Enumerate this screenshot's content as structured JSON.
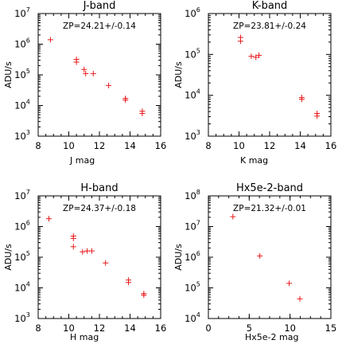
{
  "chart_data": [
    {
      "type": "scatter",
      "title": "J-band",
      "annotation": "ZP=24.21+/-0.14",
      "xlabel": "J mag",
      "ylabel": "ADU/s",
      "xlim": [
        8,
        16
      ],
      "ylim_log10": [
        3,
        7
      ],
      "xticks": [
        "8",
        "10",
        "12",
        "14",
        "16"
      ],
      "yticks": [
        {
          "base": "10",
          "exp": "3"
        },
        {
          "base": "10",
          "exp": "4"
        },
        {
          "base": "10",
          "exp": "5"
        },
        {
          "base": "10",
          "exp": "6"
        },
        {
          "base": "10",
          "exp": "7"
        }
      ],
      "y_scale": "log",
      "marker_color": "#e8191c",
      "points": [
        {
          "x": 8.8,
          "y": 1400000.0
        },
        {
          "x": 10.5,
          "y": 320000.0
        },
        {
          "x": 10.5,
          "y": 260000.0
        },
        {
          "x": 11.0,
          "y": 150000.0
        },
        {
          "x": 11.1,
          "y": 110000.0
        },
        {
          "x": 11.6,
          "y": 110000.0
        },
        {
          "x": 12.6,
          "y": 45000.0
        },
        {
          "x": 13.7,
          "y": 17000.0
        },
        {
          "x": 13.7,
          "y": 15000.0
        },
        {
          "x": 14.8,
          "y": 6500.0
        },
        {
          "x": 14.8,
          "y": 5500.0
        }
      ]
    },
    {
      "type": "scatter",
      "title": "K-band",
      "annotation": "ZP=23.81+/-0.24",
      "xlabel": "K mag",
      "ylabel": "ADU/s",
      "xlim": [
        8,
        16
      ],
      "ylim_log10": [
        3,
        6
      ],
      "xticks": [
        "8",
        "10",
        "12",
        "14",
        "16"
      ],
      "yticks": [
        {
          "base": "10",
          "exp": "3"
        },
        {
          "base": "10",
          "exp": "4"
        },
        {
          "base": "10",
          "exp": "5"
        },
        {
          "base": "10",
          "exp": "6"
        }
      ],
      "y_scale": "log",
      "marker_color": "#e8191c",
      "points": [
        {
          "x": 10.1,
          "y": 260000.0
        },
        {
          "x": 10.1,
          "y": 210000.0
        },
        {
          "x": 10.8,
          "y": 90000.0
        },
        {
          "x": 11.1,
          "y": 85000.0
        },
        {
          "x": 11.3,
          "y": 95000.0
        },
        {
          "x": 14.1,
          "y": 8800.0
        },
        {
          "x": 14.1,
          "y": 8000.0
        },
        {
          "x": 15.1,
          "y": 3600.0
        },
        {
          "x": 15.1,
          "y": 3100.0
        }
      ]
    },
    {
      "type": "scatter",
      "title": "H-band",
      "annotation": "ZP=24.37+/-0.18",
      "xlabel": "H mag",
      "ylabel": "ADU/s",
      "xlim": [
        8,
        16
      ],
      "ylim_log10": [
        3,
        7
      ],
      "xticks": [
        "8",
        "10",
        "12",
        "14",
        "16"
      ],
      "yticks": [
        {
          "base": "10",
          "exp": "3"
        },
        {
          "base": "10",
          "exp": "4"
        },
        {
          "base": "10",
          "exp": "5"
        },
        {
          "base": "10",
          "exp": "6"
        },
        {
          "base": "10",
          "exp": "7"
        }
      ],
      "y_scale": "log",
      "marker_color": "#e8191c",
      "points": [
        {
          "x": 8.7,
          "y": 1800000.0
        },
        {
          "x": 10.3,
          "y": 490000.0
        },
        {
          "x": 10.3,
          "y": 410000.0
        },
        {
          "x": 10.3,
          "y": 220000.0
        },
        {
          "x": 10.9,
          "y": 150000.0
        },
        {
          "x": 11.2,
          "y": 160000.0
        },
        {
          "x": 11.5,
          "y": 160000.0
        },
        {
          "x": 12.4,
          "y": 65000.0
        },
        {
          "x": 13.9,
          "y": 18000.0
        },
        {
          "x": 13.9,
          "y": 15000.0
        },
        {
          "x": 14.9,
          "y": 6500.0
        },
        {
          "x": 14.9,
          "y": 5800.0
        }
      ]
    },
    {
      "type": "scatter",
      "title": "Hx5e-2-band",
      "annotation": "ZP=21.32+/-0.01",
      "xlabel": "Hx5e-2 mag",
      "ylabel": "ADU/s",
      "xlim": [
        0,
        15
      ],
      "ylim_log10": [
        4,
        8
      ],
      "xticks": [
        "0",
        "5",
        "10",
        "15"
      ],
      "yticks": [
        {
          "base": "10",
          "exp": "4"
        },
        {
          "base": "10",
          "exp": "5"
        },
        {
          "base": "10",
          "exp": "6"
        },
        {
          "base": "10",
          "exp": "7"
        },
        {
          "base": "10",
          "exp": "8"
        }
      ],
      "y_scale": "log",
      "marker_color": "#e8191c",
      "points": [
        {
          "x": 3.0,
          "y": 21000000.0
        },
        {
          "x": 6.3,
          "y": 1100000.0
        },
        {
          "x": 9.9,
          "y": 140000.0
        },
        {
          "x": 11.2,
          "y": 44000.0
        }
      ]
    }
  ]
}
